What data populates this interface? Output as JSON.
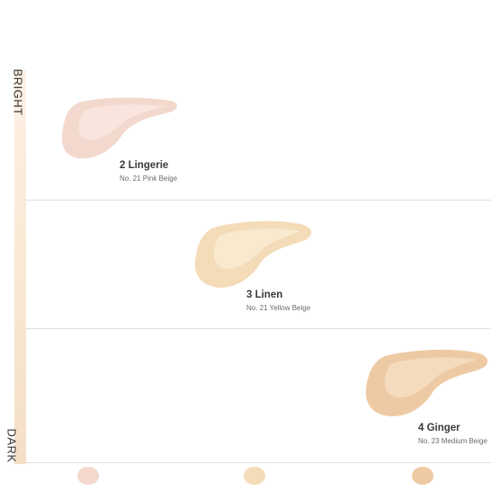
{
  "scale": {
    "top_label": "BRIGHT",
    "bottom_label": "DARK"
  },
  "shades": [
    {
      "name": "2 Lingerie",
      "description": "No. 21 Pink Beige",
      "color": "#f3d8cd",
      "highlight": "#fae9e2"
    },
    {
      "name": "3 Linen",
      "description": "No. 21 Yellow Beige",
      "color": "#f4dcb8",
      "highlight": "#faecd5"
    },
    {
      "name": "4 Ginger",
      "description": "No. 23 Medium Beige",
      "color": "#eecaa4",
      "highlight": "#f6dfc4"
    }
  ]
}
